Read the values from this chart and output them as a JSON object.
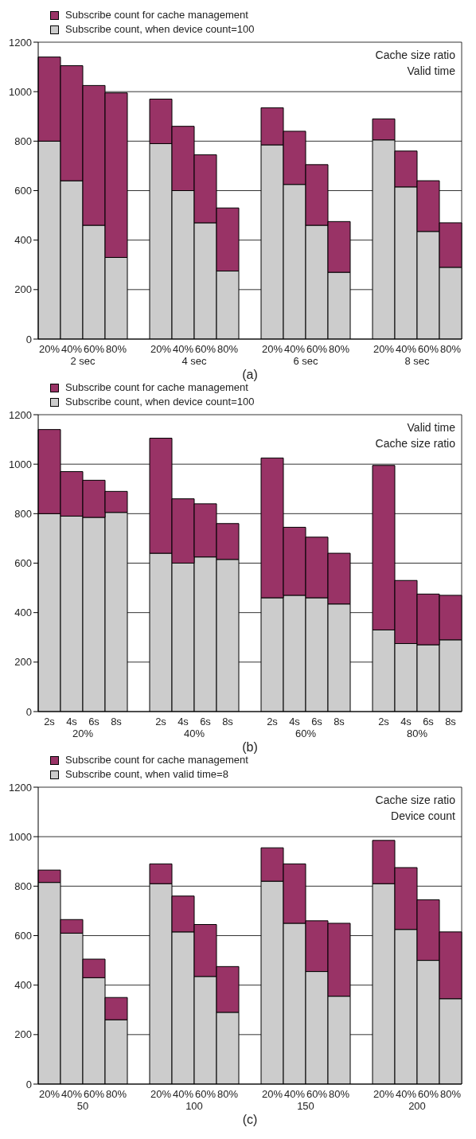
{
  "chart_data": [
    {
      "type": "bar",
      "title": "(a)",
      "stacked": true,
      "grid": "y",
      "legend": "top left",
      "categories": [
        "20%",
        "40%",
        "60%",
        "80%",
        null,
        "20%",
        "40%",
        "60%",
        "80%",
        null,
        "20%",
        "40%",
        "60%",
        "80%",
        null,
        "20%",
        "40%",
        "60%",
        "80%"
      ],
      "series": [
        {
          "name": "Subscribe count, when device count=100",
          "color": "#cccccc",
          "values": [
            800,
            640,
            460,
            330,
            null,
            790,
            600,
            470,
            275,
            null,
            785,
            625,
            460,
            270,
            null,
            805,
            615,
            435,
            290
          ]
        },
        {
          "name": "Subscribe count for cache management",
          "color": "#993366",
          "values": [
            340,
            465,
            565,
            665,
            null,
            180,
            260,
            275,
            255,
            null,
            150,
            215,
            245,
            205,
            null,
            85,
            145,
            205,
            180
          ]
        }
      ],
      "ylim": [
        0,
        1200
      ],
      "yticks": [
        0,
        200,
        400,
        600,
        800,
        1000,
        1200
      ],
      "annotations": [
        "Cache size ratio",
        "Valid time",
        "2 sec",
        "4 sec",
        "6 sec",
        "8 sec"
      ]
    },
    {
      "type": "bar",
      "title": "(b)",
      "stacked": true,
      "grid": "y",
      "legend": "top left",
      "categories": [
        "2s",
        "4s",
        "6s",
        "8s",
        null,
        "2s",
        "4s",
        "6s",
        "8s",
        null,
        "2s",
        "4s",
        "6s",
        "8s",
        null,
        "2s",
        "4s",
        "6s",
        "8s"
      ],
      "series": [
        {
          "name": "Subscribe count, when device count=100",
          "color": "#cccccc",
          "values": [
            800,
            790,
            785,
            805,
            null,
            640,
            600,
            625,
            615,
            null,
            460,
            470,
            460,
            435,
            null,
            330,
            275,
            270,
            290
          ]
        },
        {
          "name": "Subscribe count for cache management",
          "color": "#993366",
          "values": [
            340,
            180,
            150,
            85,
            null,
            465,
            260,
            215,
            145,
            null,
            565,
            275,
            245,
            205,
            null,
            665,
            255,
            205,
            180
          ]
        }
      ],
      "ylim": [
        0,
        1200
      ],
      "yticks": [
        0,
        200,
        400,
        600,
        800,
        1000,
        1200
      ],
      "annotations": [
        "Valid time",
        "Cache size ratio",
        "20%",
        "40%",
        "60%",
        "80%"
      ]
    },
    {
      "type": "bar",
      "title": "(c)",
      "stacked": true,
      "grid": "y",
      "legend": "top left",
      "categories": [
        "20%",
        "40%",
        "60%",
        "80%",
        null,
        "20%",
        "40%",
        "60%",
        "80%",
        null,
        "20%",
        "40%",
        "60%",
        "80%",
        null,
        "20%",
        "40%",
        "60%",
        "80%"
      ],
      "series": [
        {
          "name": "Subscribe count,  when valid time=8",
          "color": "#cccccc",
          "values": [
            815,
            610,
            430,
            260,
            null,
            810,
            615,
            435,
            290,
            null,
            820,
            650,
            455,
            355,
            null,
            810,
            625,
            500,
            345
          ]
        },
        {
          "name": "Subscribe count for cache management",
          "color": "#993366",
          "values": [
            50,
            55,
            75,
            90,
            null,
            80,
            145,
            210,
            185,
            null,
            135,
            240,
            205,
            295,
            null,
            175,
            250,
            245,
            270
          ]
        }
      ],
      "ylim": [
        0,
        1200
      ],
      "yticks": [
        0,
        200,
        400,
        600,
        800,
        1000,
        1200
      ],
      "annotations": [
        "Cache size ratio",
        "Device count",
        "50",
        "100",
        "150",
        "200"
      ]
    }
  ]
}
